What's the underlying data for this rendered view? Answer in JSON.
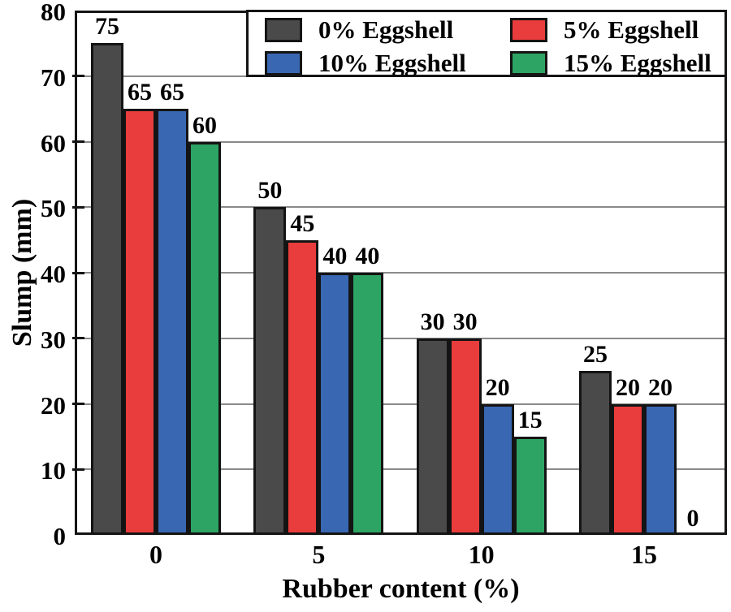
{
  "chart_data": {
    "type": "bar",
    "title": "",
    "xlabel": "Rubber content (%)",
    "ylabel": "Slump (mm)",
    "categories": [
      "0",
      "5",
      "10",
      "15"
    ],
    "series": [
      {
        "name": "0% Eggshell",
        "color": "#4a4a4a",
        "values": [
          75,
          50,
          30,
          25
        ]
      },
      {
        "name": "5% Eggshell",
        "color": "#e93c3c",
        "values": [
          65,
          45,
          30,
          20
        ]
      },
      {
        "name": "10% Eggshell",
        "color": "#3a67b2",
        "values": [
          65,
          40,
          20,
          20
        ]
      },
      {
        "name": "15% Eggshell",
        "color": "#2da463",
        "values": [
          60,
          40,
          15,
          0
        ]
      }
    ],
    "ylim": [
      0,
      80
    ],
    "ytick_interval": 10,
    "yticks": [
      "0",
      "10",
      "20",
      "30",
      "40",
      "50",
      "60",
      "70",
      "80"
    ],
    "grid": "horizontal",
    "legend_position": "top-inside",
    "bar_value_labels_shown": true,
    "colors": {
      "axis": "#141414",
      "grid": "#8a8a8a",
      "background": "#ffffff",
      "text": "#000000"
    }
  }
}
